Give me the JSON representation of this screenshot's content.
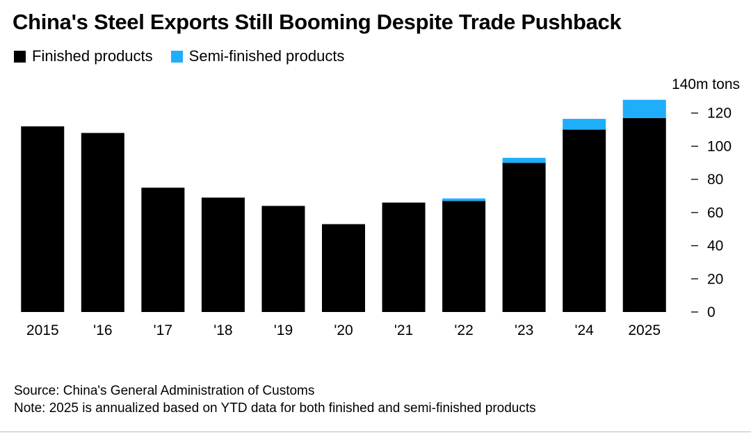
{
  "chart_data": {
    "type": "bar",
    "stacked": true,
    "title": "China's Steel Exports Still Booming Despite Trade Pushback",
    "ylabel_unit": "140m tons",
    "categories": [
      "2015",
      "'16",
      "'17",
      "'18",
      "'19",
      "'20",
      "'21",
      "'22",
      "'23",
      "'24",
      "2025"
    ],
    "series": [
      {
        "name": "Finished products",
        "color": "#000000",
        "values": [
          112,
          108,
          75,
          69,
          64,
          53,
          66,
          67,
          90,
          110,
          117
        ]
      },
      {
        "name": "Semi-finished products",
        "color": "#1eaefa",
        "values": [
          0,
          0,
          0,
          0,
          0,
          0,
          0,
          1.5,
          3,
          6.5,
          11
        ]
      }
    ],
    "ylim": [
      0,
      140
    ],
    "yticks": [
      0,
      20,
      40,
      60,
      80,
      100,
      120
    ],
    "ytick_labels": [
      "0",
      "20",
      "40",
      "60",
      "80",
      "100",
      "120"
    ],
    "grid": false,
    "legend_position": "top-left",
    "y_axis_side": "right"
  },
  "footer": {
    "source": "Source: China's General Administration of Customs",
    "note": "Note: 2025 is annualized based on YTD data for both finished and semi-finished products"
  }
}
